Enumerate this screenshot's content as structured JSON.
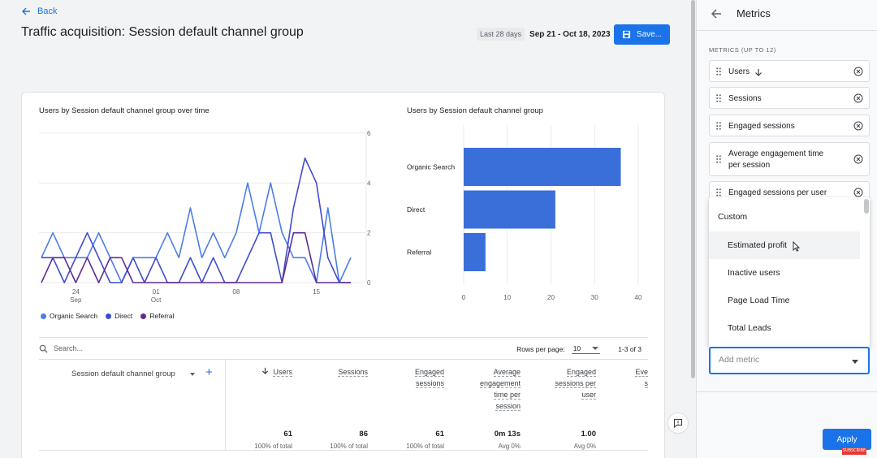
{
  "header": {
    "back_label": "Back",
    "title": "Traffic acquisition: Session default channel group",
    "date_chip": "Last 28 days",
    "date_range": "Sep 21 - Oct 18, 2023",
    "save_label": "Save..."
  },
  "line_chart": {
    "title": "Users by Session default channel group over time",
    "y_ticks": [
      "6",
      "4",
      "2",
      "0"
    ],
    "x_ticks": [
      {
        "day": "24",
        "month": "Sep"
      },
      {
        "day": "01",
        "month": "Oct"
      },
      {
        "day": "08",
        "month": ""
      },
      {
        "day": "15",
        "month": ""
      }
    ],
    "legend": [
      {
        "name": "Organic Search",
        "color": "#4c7de6"
      },
      {
        "name": "Direct",
        "color": "#3f4bd0"
      },
      {
        "name": "Referral",
        "color": "#5e2d91"
      }
    ]
  },
  "bar_chart": {
    "title": "Users by Session default channel group",
    "x_ticks": [
      "0",
      "10",
      "20",
      "30",
      "40"
    ],
    "color": "#3a6fd9"
  },
  "chart_data": [
    {
      "type": "line",
      "title": "Users by Session default channel group over time",
      "x": [
        "Sep 21",
        "Sep 22",
        "Sep 23",
        "Sep 24",
        "Sep 25",
        "Sep 26",
        "Sep 27",
        "Sep 28",
        "Sep 29",
        "Sep 30",
        "Oct 01",
        "Oct 02",
        "Oct 03",
        "Oct 04",
        "Oct 05",
        "Oct 06",
        "Oct 07",
        "Oct 08",
        "Oct 09",
        "Oct 10",
        "Oct 11",
        "Oct 12",
        "Oct 13",
        "Oct 14",
        "Oct 15",
        "Oct 16",
        "Oct 17",
        "Oct 18"
      ],
      "ylim": [
        0,
        6
      ],
      "series": [
        {
          "name": "Organic Search",
          "values": [
            1,
            2,
            1,
            1,
            1,
            2,
            1,
            0,
            1,
            1,
            1,
            2,
            1,
            3,
            1,
            2,
            1,
            2,
            4,
            2,
            4,
            2,
            1,
            1,
            0,
            3,
            0,
            1
          ]
        },
        {
          "name": "Direct",
          "values": [
            1,
            1,
            0,
            1,
            2,
            1,
            0,
            0,
            1,
            0,
            1,
            0,
            0,
            1,
            0,
            1,
            0,
            0,
            1,
            2,
            2,
            0,
            3,
            5,
            4,
            1,
            0,
            0
          ]
        },
        {
          "name": "Referral",
          "values": [
            0,
            1,
            1,
            0,
            1,
            0,
            1,
            1,
            0,
            0,
            0,
            0,
            0,
            0,
            0,
            0,
            0,
            0,
            0,
            0,
            0,
            0,
            2,
            2,
            0,
            0,
            0,
            0
          ]
        }
      ]
    },
    {
      "type": "bar",
      "orientation": "horizontal",
      "title": "Users by Session default channel group",
      "categories": [
        "Organic Search",
        "Direct",
        "Referral"
      ],
      "values": [
        36,
        21,
        5
      ],
      "xlim": [
        0,
        40
      ]
    }
  ],
  "table": {
    "search_placeholder": "Search...",
    "rows_per_page_label": "Rows per page:",
    "rows_per_page_value": "10",
    "pagination": "1-3 of 3",
    "dimension_header": "Session default channel group",
    "add_dimension": "+",
    "columns": [
      {
        "header": [
          "Users"
        ],
        "total": "61",
        "pct": "100% of total"
      },
      {
        "header": [
          "Sessions"
        ],
        "total": "86",
        "pct": "100% of total"
      },
      {
        "header": [
          "Engaged",
          "sessions"
        ],
        "total": "61",
        "pct": "100% of total"
      },
      {
        "header": [
          "Average",
          "engagement",
          "time per",
          "session"
        ],
        "total": "0m 13s",
        "pct": "Avg 0%"
      },
      {
        "header": [
          "Engaged",
          "sessions per",
          "user"
        ],
        "total": "1.00",
        "pct": "Avg 0%"
      },
      {
        "header": [
          "Eve",
          "s"
        ],
        "total": "",
        "pct": ""
      }
    ]
  },
  "panel": {
    "title": "Metrics",
    "section_label": "METRICS (UP TO 12)",
    "metrics": [
      {
        "label": "Users"
      },
      {
        "label": "Sessions"
      },
      {
        "label": "Engaged sessions"
      },
      {
        "label_lines": [
          "Average engagement time",
          "per session"
        ]
      },
      {
        "label": "Engaged sessions per user"
      }
    ],
    "dropdown": {
      "heading": "Custom",
      "options": [
        "Estimated profit",
        "Inactive users",
        "Page Load Time",
        "Total Leads"
      ]
    },
    "add_metric_placeholder": "Add metric",
    "apply_label": "Apply",
    "badge": "SUBSCRIBE"
  }
}
